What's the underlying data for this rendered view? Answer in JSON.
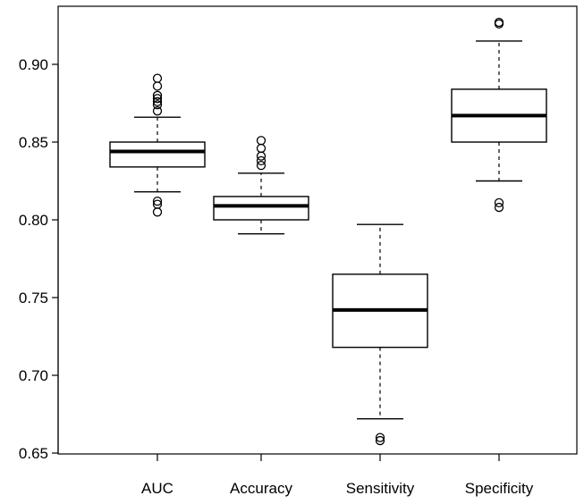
{
  "chart_data": {
    "type": "box",
    "title": "",
    "xlabel": "",
    "ylabel": "",
    "ylim": [
      0.645,
      0.932
    ],
    "yticks": [
      "0.65",
      "0.70",
      "0.75",
      "0.80",
      "0.85",
      "0.90"
    ],
    "grid": false,
    "legend": "none",
    "categories": [
      "AUC",
      "Accuracy",
      "Sensitivity",
      "Specificity"
    ],
    "boxes": [
      {
        "category": "AUC",
        "whisker_low": 0.818,
        "q1": 0.834,
        "median": 0.844,
        "q3": 0.85,
        "whisker_high": 0.866,
        "outliers": [
          0.891,
          0.886,
          0.88,
          0.878,
          0.876,
          0.874,
          0.87,
          0.812,
          0.81,
          0.805
        ]
      },
      {
        "category": "Accuracy",
        "whisker_low": 0.791,
        "q1": 0.8,
        "median": 0.809,
        "q3": 0.815,
        "whisker_high": 0.83,
        "outliers": [
          0.851,
          0.846,
          0.841,
          0.838,
          0.835
        ]
      },
      {
        "category": "Sensitivity",
        "whisker_low": 0.672,
        "q1": 0.718,
        "median": 0.742,
        "q3": 0.765,
        "whisker_high": 0.797,
        "outliers": [
          0.66,
          0.658
        ]
      },
      {
        "category": "Specificity",
        "whisker_low": 0.825,
        "q1": 0.85,
        "median": 0.867,
        "q3": 0.884,
        "whisker_high": 0.915,
        "outliers": [
          0.927,
          0.926,
          0.811,
          0.808
        ]
      }
    ],
    "colors": {
      "stroke": "#000000",
      "background": "#ffffff"
    }
  }
}
